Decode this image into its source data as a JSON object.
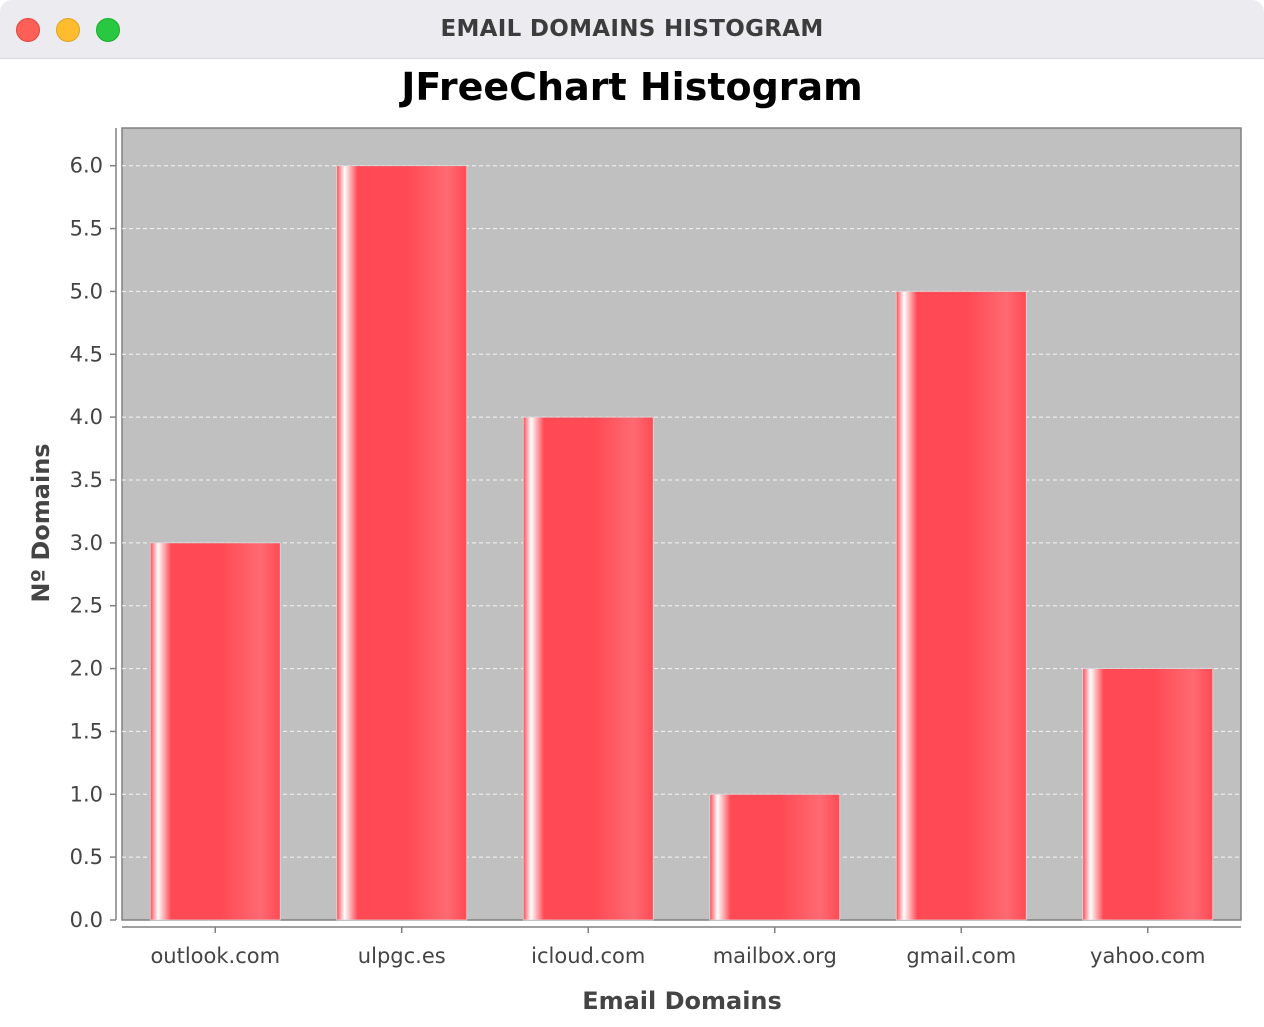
{
  "window": {
    "title": "EMAIL DOMAINS HISTOGRAM"
  },
  "colors": {
    "plot_background": "#c0c0c0",
    "bar": "#ff4a55",
    "gridline": "#ffffff",
    "title_bar": "#ecebf0"
  },
  "chart_data": {
    "type": "bar",
    "title": "JFreeChart Histogram",
    "xlabel": "Email Domains",
    "ylabel": "Nº Domains",
    "categories": [
      "outlook.com",
      "ulpgc.es",
      "icloud.com",
      "mailbox.org",
      "gmail.com",
      "yahoo.com"
    ],
    "values": [
      3,
      6,
      4,
      1,
      5,
      2
    ],
    "ylim": [
      0,
      6.3
    ],
    "yticks": [
      "0.0",
      "0.5",
      "1.0",
      "1.5",
      "2.0",
      "2.5",
      "3.0",
      "3.5",
      "4.0",
      "4.5",
      "5.0",
      "5.5",
      "6.0"
    ],
    "grid": true,
    "legend": "none"
  }
}
